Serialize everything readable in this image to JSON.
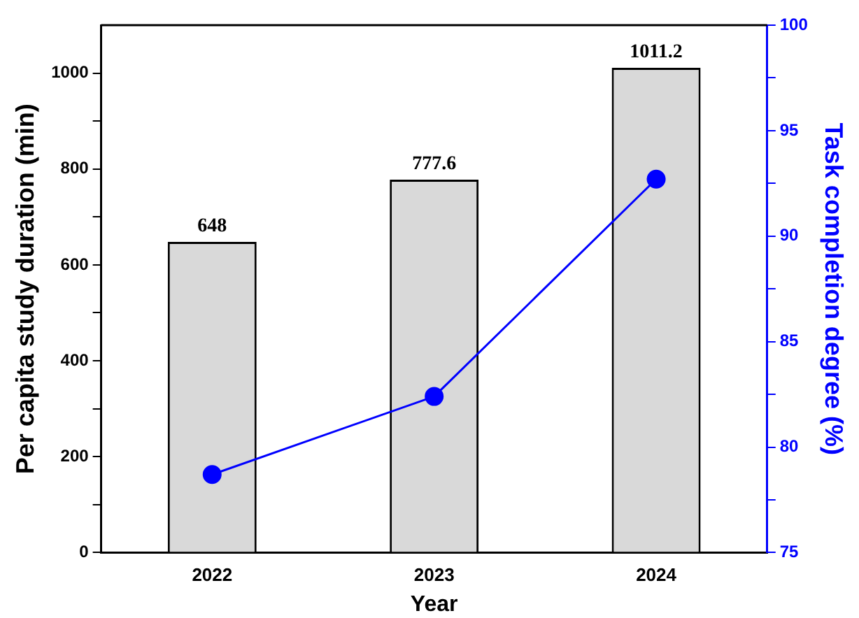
{
  "chart_data": {
    "type": "bar",
    "xlabel": "Year",
    "ylabel": "Per capita study duration (min)",
    "y2label": "Task completion degree (%)",
    "categories": [
      "2022",
      "2023",
      "2024"
    ],
    "series": [
      {
        "color": "#d9d9d9",
        "values": [
          648,
          777.6,
          1011.2
        ],
        "value_labels": [
          "648",
          "777.6",
          "1011.2"
        ]
      },
      {
        "type": "line",
        "axis": "y2",
        "color": "#0000ff",
        "values": [
          78.7,
          82.4,
          92.7
        ],
        "marker": "circle"
      }
    ],
    "ylim": [
      0,
      1100
    ],
    "yticks": [
      0,
      {
        "value": 100,
        "label": null
      },
      200,
      {
        "value": 300,
        "label": null
      },
      400,
      {
        "value": 500,
        "label": null
      },
      600,
      {
        "value": 700,
        "label": null
      },
      800,
      {
        "value": 900,
        "label": null
      },
      1000
    ],
    "y2lim": [
      75,
      100
    ],
    "y2ticks": [
      75,
      {
        "value": 77.5,
        "label": null
      },
      80,
      {
        "value": 82.5,
        "label": null
      },
      85,
      {
        "value": 87.5,
        "label": null
      },
      90,
      {
        "value": 92.5,
        "label": null
      },
      95,
      {
        "value": 97.5,
        "label": null
      },
      100
    ],
    "grid": false,
    "legend": false
  }
}
